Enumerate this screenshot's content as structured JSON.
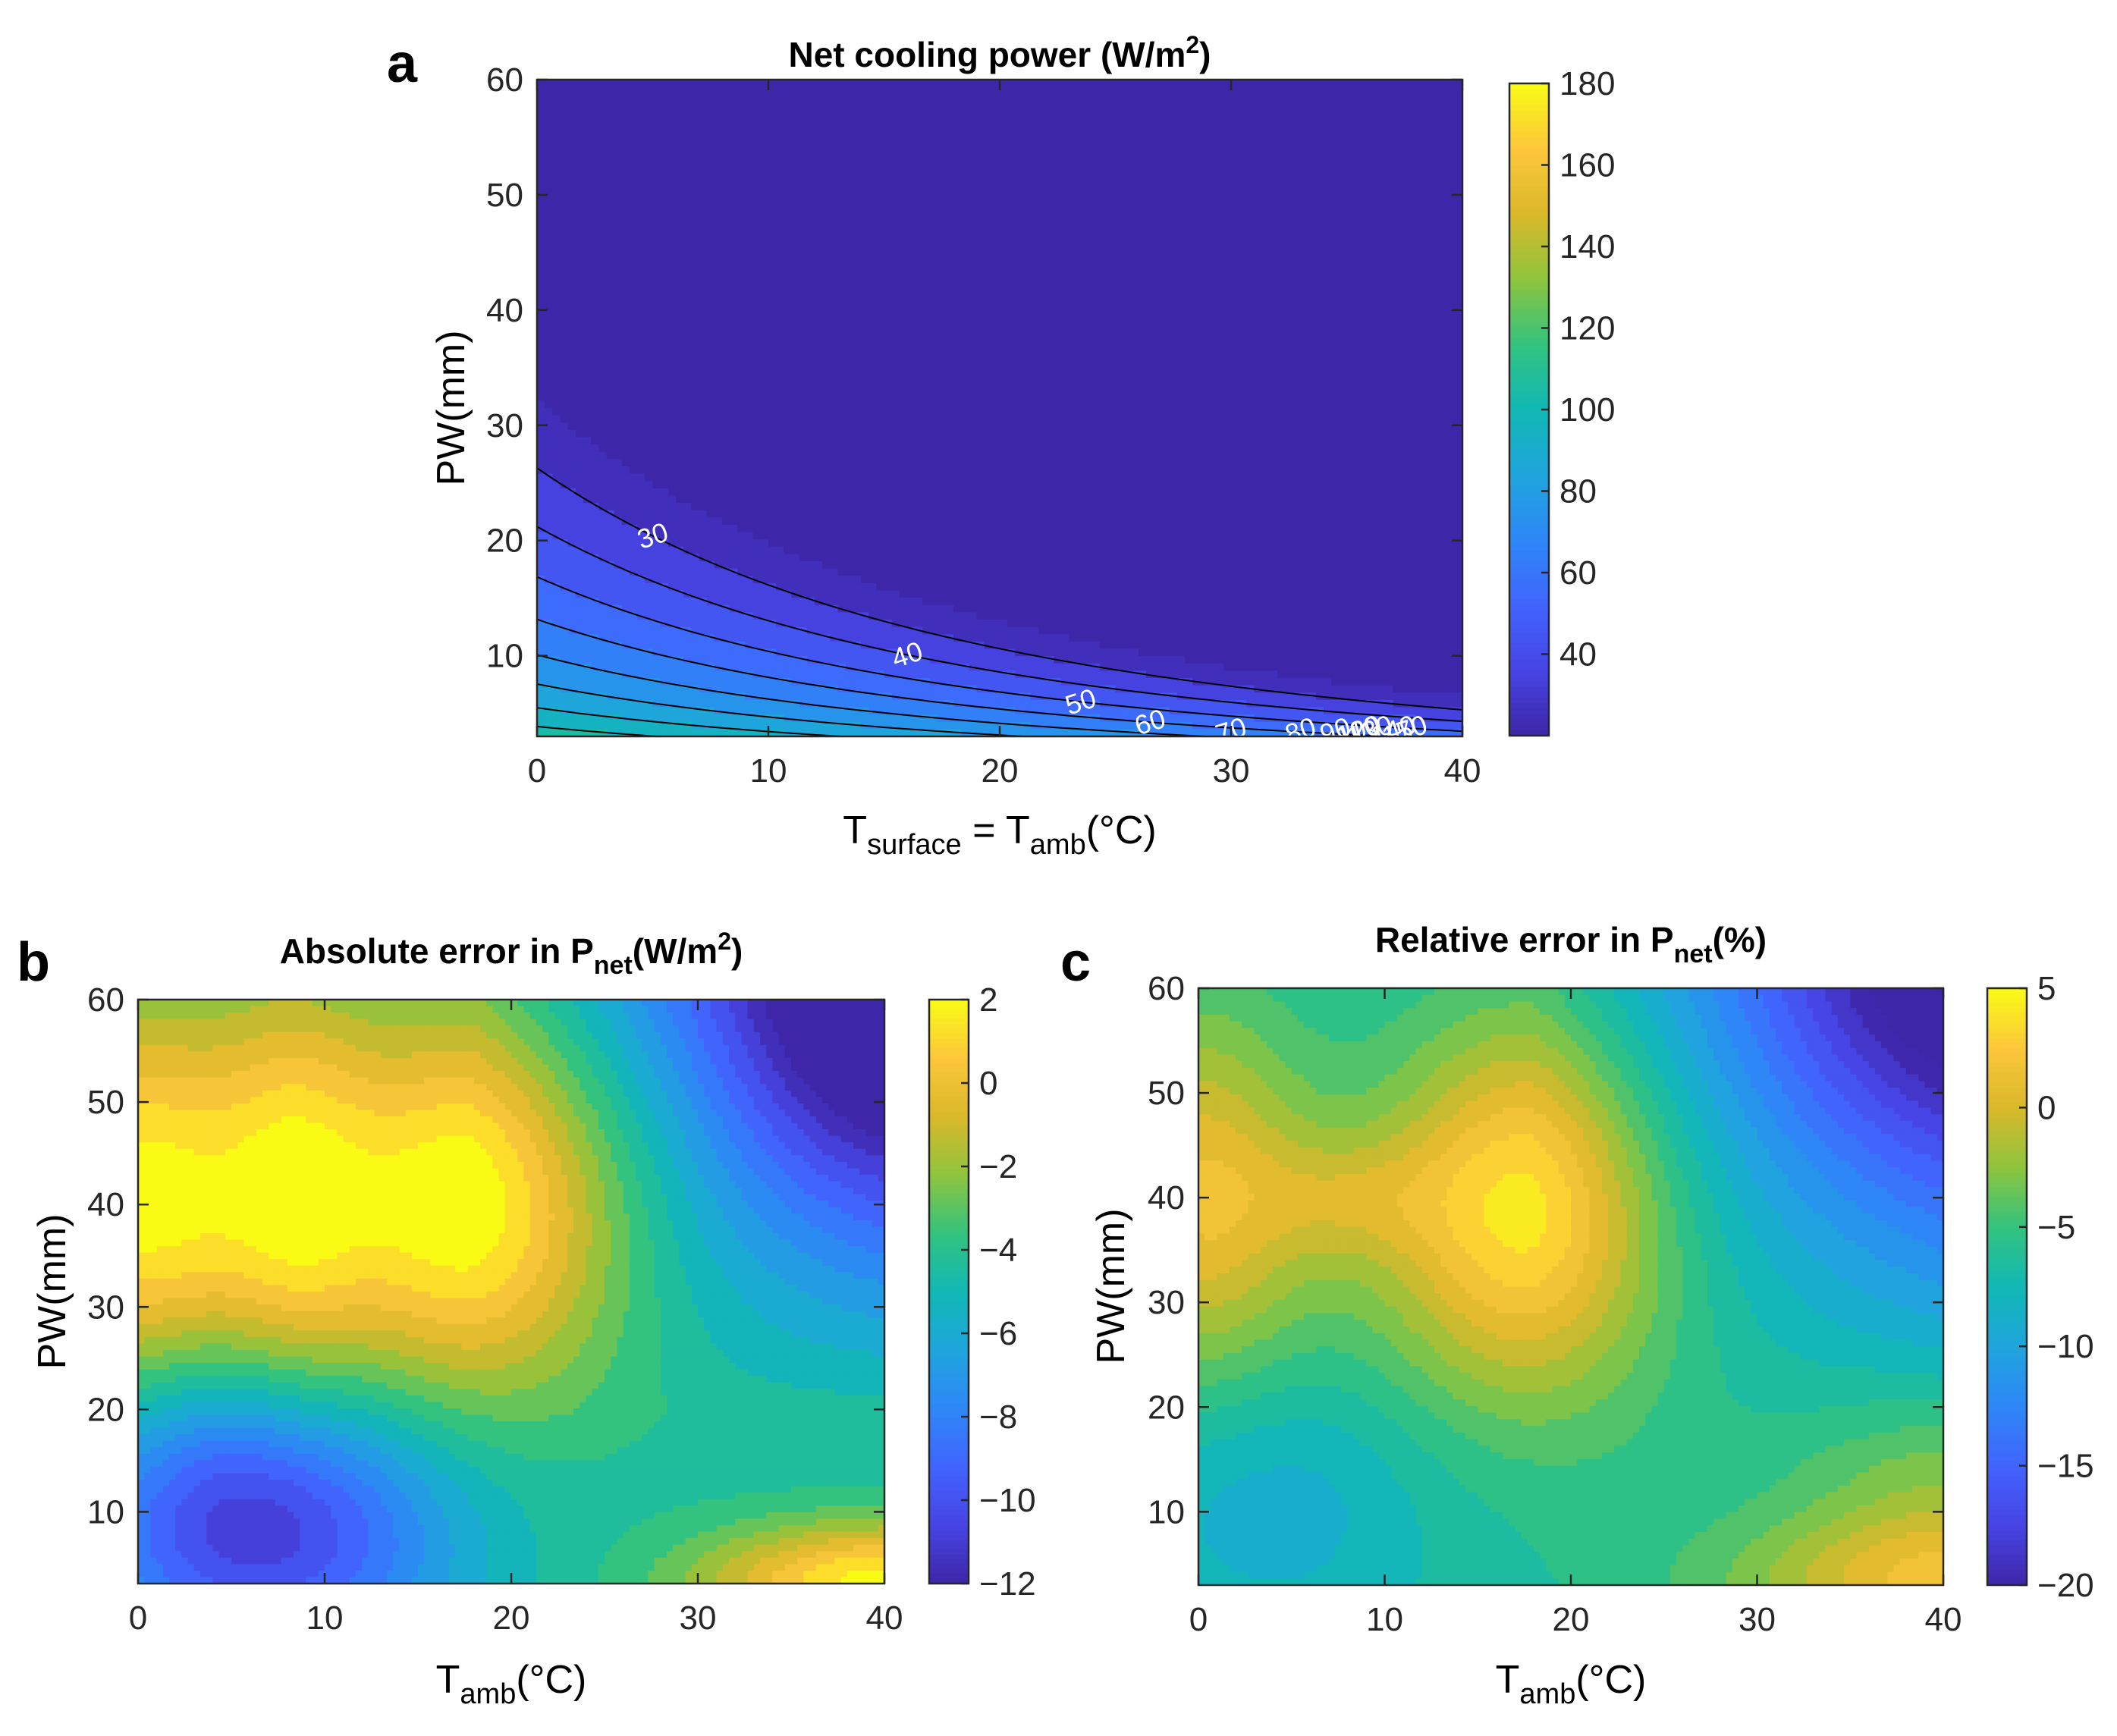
{
  "panel_labels": [
    "a",
    "b",
    "c"
  ],
  "colormap": [
    "#3e26a8",
    "#4744e4",
    "#4164fd",
    "#2e87f7",
    "#1fa5dd",
    "#11b8b4",
    "#33c37f",
    "#8ec43d",
    "#dab82a",
    "#fcc73a",
    "#f9fb15"
  ],
  "chart_data": [
    {
      "id": "a",
      "type": "contour",
      "title": "Net cooling power (W/m",
      "title_sup": "2",
      "title_tail": ")",
      "xlabel_main": "T",
      "xlabel_sub1": "surface",
      "xlabel_mid": " = T",
      "xlabel_sub2": "amb",
      "xlabel_tail": "(°C)",
      "ylabel": "PW(mm)",
      "xlim": [
        0,
        40
      ],
      "ylim": [
        3,
        60
      ],
      "xticks": [
        "0",
        "10",
        "20",
        "30",
        "40"
      ],
      "yticks": [
        "10",
        "20",
        "30",
        "40",
        "50",
        "60"
      ],
      "colorbar": {
        "min": 20,
        "max": 180,
        "ticks": [
          "40",
          "60",
          "80",
          "100",
          "120",
          "140",
          "160",
          "180"
        ]
      },
      "contour_levels": [
        30,
        40,
        50,
        60,
        70,
        80,
        90,
        100,
        110,
        120,
        130,
        140,
        150,
        160,
        170
      ],
      "contour_labels": [
        "30",
        "40",
        "50",
        "60",
        "70",
        "80",
        "90",
        "100",
        "110",
        "120",
        "130",
        "140",
        "150",
        "170"
      ]
    },
    {
      "id": "b",
      "type": "heatmap",
      "title": "Absolute error in P",
      "title_sub": "net",
      "title_tail": "(W/m",
      "title_sup": "2",
      "title_end": ")",
      "xlabel_main": "T",
      "xlabel_sub": "amb",
      "xlabel_tail": "(°C)",
      "ylabel": "PW(mm)",
      "xlim": [
        0,
        40
      ],
      "ylim": [
        3,
        60
      ],
      "xticks": [
        "0",
        "10",
        "20",
        "30",
        "40"
      ],
      "yticks": [
        "10",
        "20",
        "30",
        "40",
        "50",
        "60"
      ],
      "colorbar": {
        "min": -12,
        "max": 2,
        "ticks": [
          "2",
          "0",
          "-2",
          "-4",
          "-6",
          "-8",
          "-10",
          "-12"
        ]
      }
    },
    {
      "id": "c",
      "type": "heatmap",
      "title": "Relative error in P",
      "title_sub": "net",
      "title_tail": "(%)",
      "xlabel_main": "T",
      "xlabel_sub": "amb",
      "xlabel_tail": "(°C)",
      "ylabel": "PW(mm)",
      "xlim": [
        0,
        40
      ],
      "ylim": [
        3,
        60
      ],
      "xticks": [
        "0",
        "10",
        "20",
        "30",
        "40"
      ],
      "yticks": [
        "10",
        "20",
        "30",
        "40",
        "50",
        "60"
      ],
      "colorbar": {
        "min": -20,
        "max": 5,
        "ticks": [
          "5",
          "0",
          "-5",
          "-10",
          "-15",
          "-20"
        ]
      }
    }
  ]
}
